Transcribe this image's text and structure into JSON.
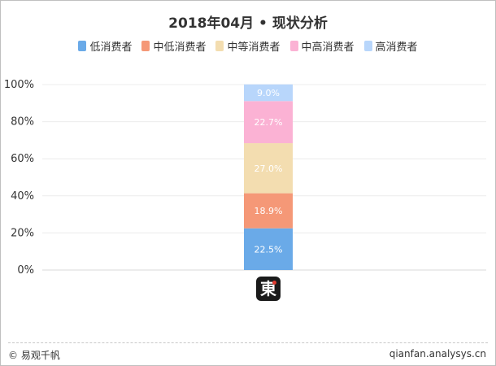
{
  "chart_data": {
    "type": "bar",
    "stacked": true,
    "title": "2018年04月 • 现状分析",
    "categories": [
      ""
    ],
    "series": [
      {
        "name": "低消费者",
        "values": [
          22.5
        ],
        "color": "#6aaae8"
      },
      {
        "name": "中低消费者",
        "values": [
          18.9
        ],
        "color": "#f59877"
      },
      {
        "name": "中等消费者",
        "values": [
          27.0
        ],
        "color": "#f3ddb0"
      },
      {
        "name": "中高消费者",
        "values": [
          22.7
        ],
        "color": "#fbb2d4"
      },
      {
        "name": "高消费者",
        "values": [
          9.0
        ],
        "color": "#b8d6fb"
      }
    ],
    "value_labels": [
      "22.5%",
      "18.9%",
      "27.0%",
      "22.7%",
      "9.0%"
    ],
    "yticks": [
      "0%",
      "20%",
      "40%",
      "60%",
      "80%",
      "100%"
    ],
    "ylim": [
      0,
      100
    ],
    "grid": true,
    "legend_position": "top"
  },
  "category_icon": {
    "name": "app-logo-icon",
    "glyph": "東"
  },
  "footer": {
    "left": "© 易观千帆",
    "right": "qianfan.analysys.cn"
  }
}
